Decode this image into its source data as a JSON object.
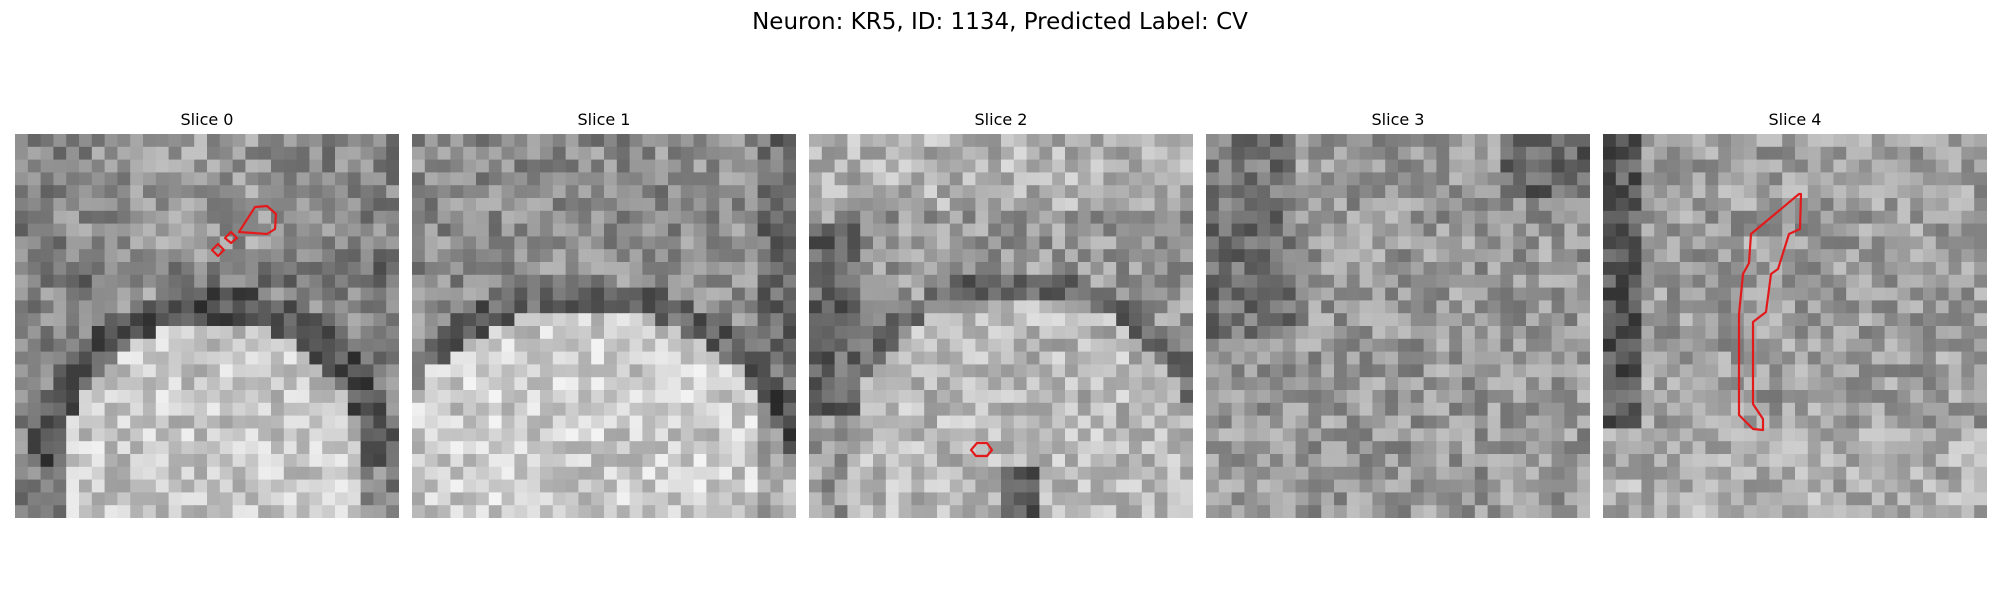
{
  "figure": {
    "title": "Neuron: KR5, ID: 1134, Predicted Label: CV"
  },
  "panels": [
    {
      "title": "Slice 0"
    },
    {
      "title": "Slice 1"
    },
    {
      "title": "Slice 2"
    },
    {
      "title": "Slice 3"
    },
    {
      "title": "Slice 4"
    }
  ],
  "colors": {
    "contour": "#e31a1c",
    "background": "#ffffff"
  }
}
